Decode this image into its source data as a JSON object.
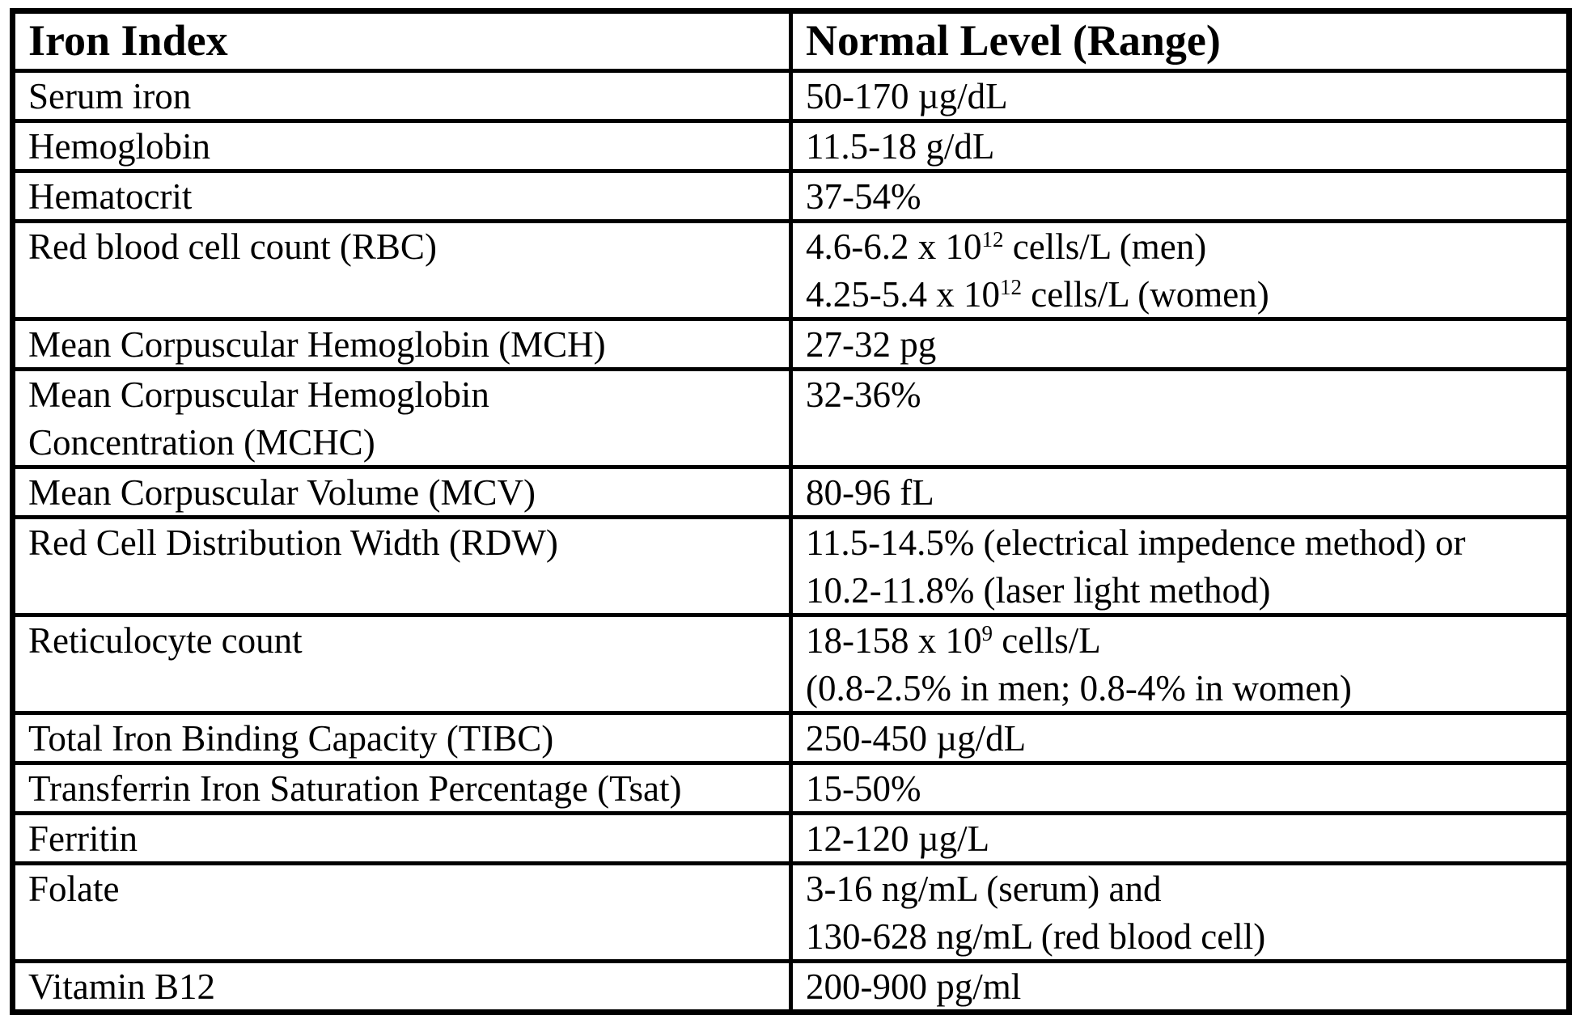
{
  "page": {
    "background_color": "#ffffff",
    "text_color": "#000000",
    "border_color": "#000000"
  },
  "table": {
    "columns": [
      {
        "label": "Iron Index"
      },
      {
        "label": "Normal Level (Range)"
      }
    ],
    "rows": [
      {
        "index": [
          [
            "Serum iron"
          ]
        ],
        "range": [
          [
            "50-170 µg/dL"
          ]
        ]
      },
      {
        "index": [
          [
            "Hemoglobin"
          ]
        ],
        "range": [
          [
            "11.5-18 g/dL"
          ]
        ]
      },
      {
        "index": [
          [
            "Hematocrit"
          ]
        ],
        "range": [
          [
            "37-54%"
          ]
        ]
      },
      {
        "index": [
          [
            "Red blood cell count (RBC)"
          ]
        ],
        "range": [
          [
            "4.6-6.2 x 10",
            {
              "sup": "12"
            },
            " cells/L (men)"
          ],
          [
            "4.25-5.4 x 10",
            {
              "sup": "12"
            },
            " cells/L (women)"
          ]
        ]
      },
      {
        "index": [
          [
            "Mean Corpuscular Hemoglobin (MCH)"
          ]
        ],
        "range": [
          [
            "27-32 pg"
          ]
        ]
      },
      {
        "index": [
          [
            "Mean Corpuscular Hemoglobin"
          ],
          [
            "Concentration (MCHC)"
          ]
        ],
        "range": [
          [
            "32-36%"
          ]
        ]
      },
      {
        "index": [
          [
            "Mean Corpuscular Volume (MCV)"
          ]
        ],
        "range": [
          [
            "80-96 fL"
          ]
        ]
      },
      {
        "index": [
          [
            "Red Cell Distribution Width (RDW)"
          ]
        ],
        "range": [
          [
            "11.5-14.5% (electrical impedence method) or"
          ],
          [
            "10.2-11.8% (laser light method)"
          ]
        ]
      },
      {
        "index": [
          [
            "Reticulocyte count"
          ]
        ],
        "range": [
          [
            "18-158 x 10",
            {
              "sup": "9"
            },
            " cells/L"
          ],
          [
            "(0.8-2.5% in men; 0.8-4% in women)"
          ]
        ]
      },
      {
        "index": [
          [
            "Total Iron Binding Capacity (TIBC)"
          ]
        ],
        "range": [
          [
            "250-450 µg/dL"
          ]
        ]
      },
      {
        "index": [
          [
            "Transferrin Iron Saturation Percentage (Tsat)"
          ]
        ],
        "range": [
          [
            "15-50%"
          ]
        ]
      },
      {
        "index": [
          [
            "Ferritin"
          ]
        ],
        "range": [
          [
            "12-120 µg/L"
          ]
        ]
      },
      {
        "index": [
          [
            "Folate"
          ]
        ],
        "range": [
          [
            "3-16 ng/mL (serum) and"
          ],
          [
            "130-628 ng/mL (red blood cell)"
          ]
        ]
      },
      {
        "index": [
          [
            "Vitamin B12"
          ]
        ],
        "range": [
          [
            "200-900 pg/ml"
          ]
        ]
      }
    ]
  }
}
